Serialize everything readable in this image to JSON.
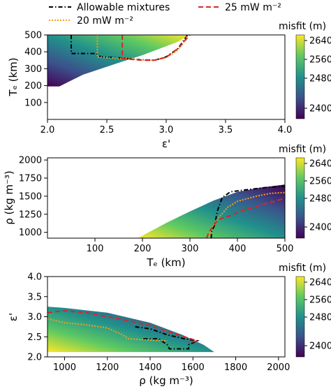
{
  "legend": {
    "items": [
      {
        "label": "Allowable mixtures",
        "color": "#000000",
        "dash": "dashdot"
      },
      {
        "label": "20 mW m⁻²",
        "color": "#f0a020",
        "dash": "dotted"
      },
      {
        "label": "25 mW m⁻²",
        "color": "#d62728",
        "dash": "dashed"
      }
    ]
  },
  "colorbar": {
    "label": "misfit (m)",
    "ticks": [
      "2640",
      "2560",
      "2480",
      "2400"
    ],
    "colors": [
      "#440154",
      "#3b528b",
      "#21918c",
      "#5ec962",
      "#fde725"
    ]
  },
  "chart_data": [
    {
      "type": "heatmap",
      "xlabel": "ε'",
      "ylabel": "Tₑ (km)",
      "xlim": [
        2.0,
        4.0
      ],
      "ylim": [
        0,
        500
      ],
      "xticks": [
        "2.0",
        "2.5",
        "3.0",
        "3.5",
        "4.0"
      ],
      "yticks": [
        "100",
        "200",
        "300",
        "400",
        "500"
      ],
      "xtick_values": [
        2.0,
        2.5,
        3.0,
        3.5,
        4.0
      ],
      "ytick_values": [
        100,
        200,
        300,
        400,
        500
      ],
      "region": [
        [
          2.0,
          500
        ],
        [
          2.0,
          195
        ],
        [
          2.1,
          195
        ],
        [
          2.2,
          230
        ],
        [
          2.3,
          265
        ],
        [
          2.45,
          300
        ],
        [
          2.62,
          340
        ],
        [
          2.8,
          380
        ],
        [
          2.95,
          420
        ],
        [
          3.1,
          460
        ],
        [
          3.2,
          500
        ]
      ],
      "series": [
        {
          "name": "Allowable mixtures",
          "color": "#000000",
          "dash": "6,3,1.5,3",
          "points": [
            [
              2.2,
              500
            ],
            [
              2.2,
              390
            ],
            [
              2.4,
              390
            ],
            [
              2.45,
              370
            ],
            [
              2.6,
              365
            ],
            [
              2.75,
              355
            ],
            [
              2.9,
              350
            ],
            [
              3.0,
              370
            ],
            [
              3.1,
              420
            ],
            [
              3.18,
              500
            ]
          ]
        },
        {
          "name": "20 mW m⁻²",
          "color": "#f0a020",
          "dash": "2,2",
          "points": [
            [
              2.42,
              500
            ],
            [
              2.42,
              370
            ],
            [
              2.5,
              365
            ],
            [
              2.65,
              360
            ],
            [
              2.8,
              352
            ],
            [
              2.9,
              350
            ],
            [
              3.0,
              365
            ],
            [
              3.1,
              410
            ],
            [
              3.15,
              460
            ],
            [
              3.18,
              500
            ]
          ]
        },
        {
          "name": "25 mW m⁻²",
          "color": "#d62728",
          "dash": "7,4",
          "points": [
            [
              2.63,
              500
            ],
            [
              2.63,
              360
            ],
            [
              2.8,
              350
            ],
            [
              2.9,
              350
            ],
            [
              3.0,
              368
            ],
            [
              3.1,
              420
            ],
            [
              3.2,
              500
            ]
          ]
        }
      ]
    },
    {
      "type": "heatmap",
      "xlabel": "Tₑ (km)",
      "ylabel": "ρ (kg m⁻³)",
      "xlim": [
        0,
        500
      ],
      "ylim": [
        920,
        2030
      ],
      "xticks": [
        "100",
        "200",
        "300",
        "400",
        "500"
      ],
      "yticks": [
        "1000",
        "1250",
        "1500",
        "1750",
        "2000"
      ],
      "xtick_values": [
        100,
        200,
        300,
        400,
        500
      ],
      "ytick_values": [
        1000,
        1250,
        1500,
        1750,
        2000
      ],
      "region": [
        [
          190,
          920
        ],
        [
          500,
          920
        ],
        [
          500,
          1660
        ],
        [
          450,
          1620
        ],
        [
          400,
          1560
        ],
        [
          350,
          1440
        ],
        [
          300,
          1290
        ],
        [
          250,
          1130
        ]
      ],
      "series": [
        {
          "name": "Allowable mixtures",
          "color": "#000000",
          "dash": "6,3,1.5,3",
          "points": [
            [
              345,
              920
            ],
            [
              345,
              1000
            ],
            [
              352,
              1100
            ],
            [
              358,
              1300
            ],
            [
              368,
              1480
            ],
            [
              385,
              1560
            ],
            [
              420,
              1590
            ],
            [
              460,
              1620
            ],
            [
              500,
              1640
            ]
          ]
        },
        {
          "name": "20 mW m⁻²",
          "color": "#f0a020",
          "dash": "2,2",
          "points": [
            [
              340,
              920
            ],
            [
              345,
              1050
            ],
            [
              360,
              1200
            ],
            [
              380,
              1350
            ],
            [
              400,
              1430
            ],
            [
              440,
              1500
            ],
            [
              470,
              1540
            ],
            [
              500,
              1550
            ]
          ]
        },
        {
          "name": "25 mW m⁻²",
          "color": "#d62728",
          "dash": "7,4",
          "points": [
            [
              335,
              920
            ],
            [
              340,
              1000
            ],
            [
              350,
              1100
            ],
            [
              360,
              1180
            ],
            [
              385,
              1230
            ],
            [
              410,
              1300
            ],
            [
              450,
              1380
            ],
            [
              500,
              1470
            ]
          ]
        }
      ]
    },
    {
      "type": "heatmap",
      "xlabel": "ρ (kg m⁻³)",
      "ylabel": "ε'",
      "xlim": [
        920,
        2030
      ],
      "ylim": [
        2.0,
        4.0
      ],
      "xticks": [
        "1000",
        "1200",
        "1400",
        "1600",
        "1800",
        "2000"
      ],
      "yticks": [
        "2.0",
        "2.5",
        "3.0",
        "3.5",
        "4.0"
      ],
      "xtick_values": [
        1000,
        1200,
        1400,
        1600,
        1800,
        2000
      ],
      "ytick_values": [
        2.0,
        2.5,
        3.0,
        3.5,
        4.0
      ],
      "region": [
        [
          920,
          3.25
        ],
        [
          1000,
          3.22
        ],
        [
          1200,
          3.1
        ],
        [
          1400,
          2.85
        ],
        [
          1550,
          2.55
        ],
        [
          1650,
          2.3
        ],
        [
          1700,
          2.12
        ],
        [
          920,
          2.12
        ]
      ],
      "series": [
        {
          "name": "Allowable mixtures",
          "color": "#000000",
          "dash": "6,3,1.5,3",
          "points": [
            [
              1330,
              2.75
            ],
            [
              1400,
              2.7
            ],
            [
              1480,
              2.55
            ],
            [
              1560,
              2.45
            ],
            [
              1620,
              2.4
            ],
            [
              1580,
              2.3
            ],
            [
              1580,
              2.2
            ],
            [
              1490,
              2.2
            ],
            [
              1480,
              2.3
            ],
            [
              1440,
              2.45
            ],
            [
              1360,
              2.45
            ]
          ]
        },
        {
          "name": "20 mW m⁻²",
          "color": "#f0a020",
          "dash": "2,2",
          "points": [
            [
              920,
              2.95
            ],
            [
              1000,
              2.85
            ],
            [
              1100,
              2.8
            ],
            [
              1200,
              2.72
            ],
            [
              1270,
              2.55
            ],
            [
              1300,
              2.45
            ],
            [
              1400,
              2.42
            ],
            [
              1480,
              2.4
            ]
          ]
        },
        {
          "name": "25 mW m⁻²",
          "color": "#d62728",
          "dash": "7,4",
          "points": [
            [
              920,
              3.1
            ],
            [
              1000,
              3.15
            ],
            [
              1100,
              3.1
            ],
            [
              1200,
              3.0
            ],
            [
              1300,
              2.9
            ],
            [
              1400,
              2.78
            ],
            [
              1500,
              2.6
            ],
            [
              1560,
              2.5
            ],
            [
              1620,
              2.4
            ],
            [
              1580,
              2.35
            ]
          ]
        }
      ]
    }
  ]
}
